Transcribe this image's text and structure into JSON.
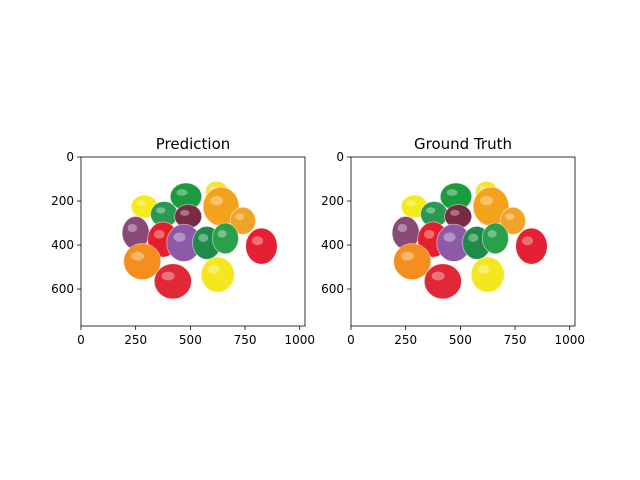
{
  "chart_data": [
    {
      "type": "image",
      "title": "Prediction",
      "xlim": [
        0,
        1024
      ],
      "ylim": [
        768,
        0
      ],
      "xticks": [
        0,
        250,
        500,
        750,
        1000
      ],
      "yticks": [
        0,
        200,
        400,
        600
      ],
      "xtick_labels": [
        "0",
        "250",
        "500",
        "750",
        "1000"
      ],
      "ytick_labels": [
        "0",
        "200",
        "400",
        "600"
      ],
      "grid": false
    },
    {
      "type": "image",
      "title": "Ground Truth",
      "xlim": [
        0,
        1024
      ],
      "ylim": [
        768,
        0
      ],
      "xticks": [
        0,
        250,
        500,
        750,
        1000
      ],
      "yticks": [
        0,
        200,
        400,
        600
      ],
      "xtick_labels": [
        "0",
        "250",
        "500",
        "750",
        "1000"
      ],
      "ytick_labels": [
        "0",
        "200",
        "400",
        "600"
      ],
      "grid": false
    }
  ],
  "candies": [
    {
      "x": 290,
      "y": 225,
      "rx": 60,
      "ry": 52,
      "color": "#f4ea1c"
    },
    {
      "x": 480,
      "y": 180,
      "rx": 72,
      "ry": 62,
      "color": "#1c9a3e"
    },
    {
      "x": 620,
      "y": 160,
      "rx": 52,
      "ry": 50,
      "color": "#f2e23a"
    },
    {
      "x": 380,
      "y": 260,
      "rx": 62,
      "ry": 58,
      "color": "#2a9a52"
    },
    {
      "x": 490,
      "y": 270,
      "rx": 62,
      "ry": 54,
      "color": "#7a2a44"
    },
    {
      "x": 640,
      "y": 225,
      "rx": 82,
      "ry": 88,
      "color": "#f4a21c"
    },
    {
      "x": 740,
      "y": 290,
      "rx": 58,
      "ry": 62,
      "color": "#f0a428"
    },
    {
      "x": 250,
      "y": 345,
      "rx": 62,
      "ry": 75,
      "color": "#8a4a78"
    },
    {
      "x": 375,
      "y": 375,
      "rx": 70,
      "ry": 80,
      "color": "#e41e2a"
    },
    {
      "x": 470,
      "y": 390,
      "rx": 78,
      "ry": 85,
      "color": "#8c5aa6"
    },
    {
      "x": 575,
      "y": 390,
      "rx": 65,
      "ry": 75,
      "color": "#1e8c48"
    },
    {
      "x": 660,
      "y": 370,
      "rx": 60,
      "ry": 70,
      "color": "#2aa04c"
    },
    {
      "x": 825,
      "y": 405,
      "rx": 72,
      "ry": 82,
      "color": "#e42032"
    },
    {
      "x": 280,
      "y": 475,
      "rx": 85,
      "ry": 82,
      "color": "#f48e1e"
    },
    {
      "x": 420,
      "y": 565,
      "rx": 85,
      "ry": 80,
      "color": "#e02838"
    },
    {
      "x": 625,
      "y": 535,
      "rx": 76,
      "ry": 80,
      "color": "#f4e620"
    }
  ]
}
